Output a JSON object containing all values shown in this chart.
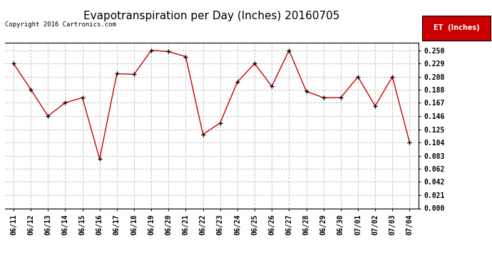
{
  "title": "Evapotranspiration per Day (Inches) 20160705",
  "copyright": "Copyright 2016 Cartronics.com",
  "legend_label": "ET  (Inches)",
  "legend_bg": "#cc0000",
  "legend_fg": "#ffffff",
  "background_color": "#ffffff",
  "plot_bg": "#ffffff",
  "line_color": "#cc0000",
  "marker_color": "#000000",
  "grid_color": "#c8c8c8",
  "dates": [
    "06/11",
    "06/12",
    "06/13",
    "06/14",
    "06/15",
    "06/16",
    "06/17",
    "06/18",
    "06/19",
    "06/20",
    "06/21",
    "06/22",
    "06/23",
    "06/24",
    "06/25",
    "06/26",
    "06/27",
    "06/28",
    "06/29",
    "06/30",
    "07/01",
    "07/02",
    "07/03",
    "07/04"
  ],
  "values": [
    0.229,
    0.188,
    0.146,
    0.167,
    0.175,
    0.078,
    0.213,
    0.212,
    0.25,
    0.248,
    0.24,
    0.117,
    0.135,
    0.2,
    0.229,
    0.193,
    0.25,
    0.185,
    0.175,
    0.175,
    0.208,
    0.162,
    0.208,
    0.104
  ],
  "yticks": [
    0.0,
    0.021,
    0.042,
    0.062,
    0.083,
    0.104,
    0.125,
    0.146,
    0.167,
    0.188,
    0.208,
    0.229,
    0.25
  ],
  "ylim": [
    0.0,
    0.262
  ],
  "title_fontsize": 11,
  "tick_fontsize": 7,
  "copyright_fontsize": 6.5,
  "legend_fontsize": 7
}
